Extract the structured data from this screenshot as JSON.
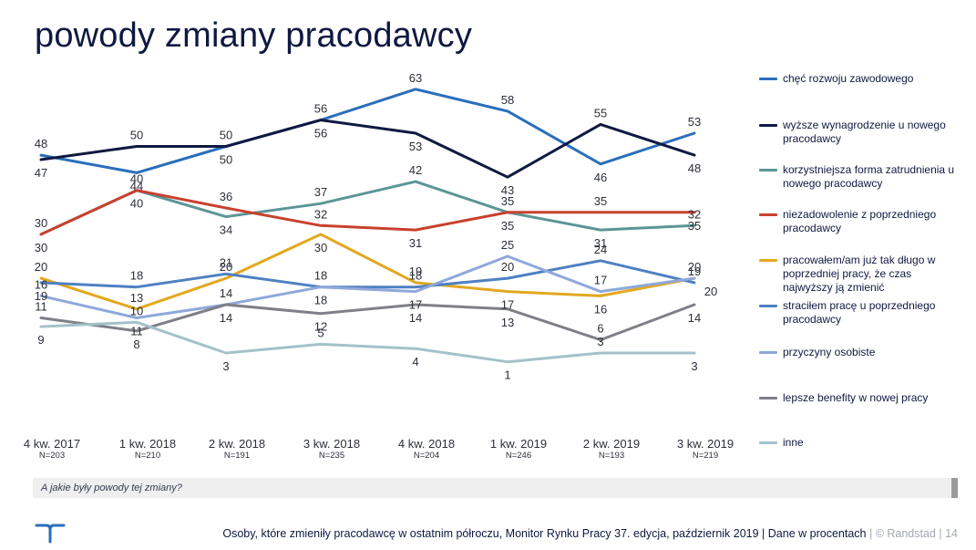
{
  "page": {
    "title": "powody zmiany pracodawcy",
    "question": "A jakie były powody tej zmiany?",
    "footer_text": "Osoby, które zmieniły pracodawcę w ostatnim półroczu, Monitor Rynku Pracy 37. edycja, październik 2019 | Dane w procentach",
    "footer_brand": "| © Randstad",
    "footer_page": "| 14",
    "logo_icon": "randstad-logo-icon"
  },
  "chart_data": {
    "type": "line",
    "title": "powody zmiany pracodawcy",
    "xlabel": "",
    "ylabel": "",
    "x": [
      "4 kw. 2017",
      "1 kw. 2018",
      "2 kw. 2018",
      "3 kw. 2018",
      "4 kw. 2018",
      "1 kw. 2019",
      "2 kw. 2019",
      "3 kw. 2019"
    ],
    "n_labels": [
      "N=203",
      "N=210",
      "N=191",
      "N=235",
      "N=204",
      "N=246",
      "N=193",
      "N=219"
    ],
    "ylim": [
      0,
      70
    ],
    "grid": false,
    "legend_position": "right",
    "series": [
      {
        "name": "chęć rozwoju zawodowego",
        "color": "#2a6ebb",
        "values": [
          48,
          44,
          50,
          56,
          63,
          58,
          46,
          53
        ]
      },
      {
        "name": "wyższe wynagrodzenie u nowego pracodawcy",
        "color": "#0f1941",
        "values": [
          47,
          50,
          50,
          56,
          53,
          43,
          55,
          48
        ]
      },
      {
        "name": "korzystniejsza forma zatrudnienia u nowego pracodawcy",
        "color": "#5c9597",
        "values": [
          30,
          40,
          34,
          37,
          42,
          35,
          31,
          32
        ]
      },
      {
        "name": "niezadowolenie z poprzedniego pracodawcy",
        "color": "#c8412f",
        "values": [
          30,
          40,
          36,
          32,
          31,
          35,
          35,
          35
        ]
      },
      {
        "name": "pracowałem/am już tak długo w poprzedniej pracy, że czas najwyższy ją zmienić",
        "color": "#e2a81f",
        "values": [
          20,
          13,
          20,
          30,
          19,
          17,
          16,
          20
        ]
      },
      {
        "name": "straciłem pracę u poprzedniego pracodawcy",
        "color": "#4e80c2",
        "values": [
          19,
          18,
          21,
          18,
          18,
          20,
          24,
          19
        ]
      },
      {
        "name": "przyczyny osobiste",
        "color": "#8fa8da",
        "values": [
          16,
          11,
          14,
          18,
          17,
          25,
          17,
          20
        ]
      },
      {
        "name": "lepsze benefity w nowej pracy",
        "color": "#7f8087",
        "values": [
          11,
          8,
          14,
          12,
          14,
          13,
          6,
          14
        ]
      },
      {
        "name": "inne",
        "color": "#a3c2ca",
        "values": [
          9,
          10,
          3,
          5,
          4,
          1,
          3,
          3
        ]
      }
    ]
  }
}
